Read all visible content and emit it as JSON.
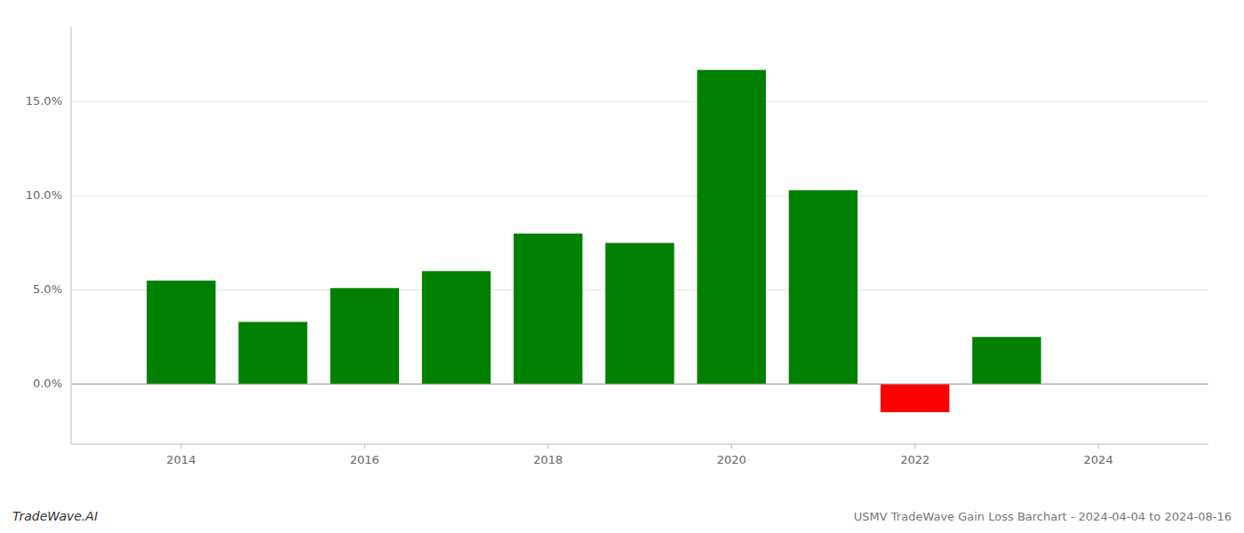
{
  "chart_data": {
    "type": "bar",
    "x": [
      2014,
      2015,
      2016,
      2017,
      2018,
      2019,
      2020,
      2021,
      2022,
      2023
    ],
    "values": [
      0.055,
      0.033,
      0.051,
      0.06,
      0.08,
      0.075,
      0.167,
      0.103,
      -0.015,
      0.025
    ],
    "colors": [
      "#008000",
      "#008000",
      "#008000",
      "#008000",
      "#008000",
      "#008000",
      "#008000",
      "#008000",
      "#ff0000",
      "#008000"
    ],
    "xlim": [
      2012.8,
      2025.2
    ],
    "xticks": [
      2014,
      2016,
      2018,
      2020,
      2022,
      2024
    ],
    "ylim": [
      -0.032,
      0.19
    ],
    "yticks": [
      {
        "value": 0.0,
        "label": "0.0%"
      },
      {
        "value": 0.05,
        "label": "5.0%"
      },
      {
        "value": 0.1,
        "label": "10.0%"
      },
      {
        "value": 0.15,
        "label": "15.0%"
      }
    ],
    "grid": true,
    "annotations": [
      "TradeWave.AI",
      "USMV TradeWave Gain Loss Barchart - 2024-04-04 to 2024-08-16"
    ]
  }
}
